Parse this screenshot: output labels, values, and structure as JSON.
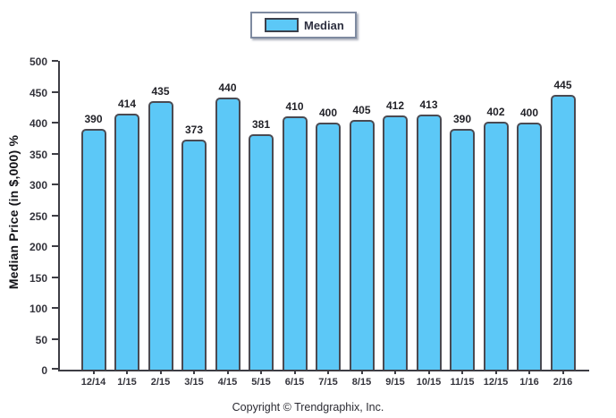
{
  "legend": {
    "label": "Median",
    "swatch_color": "#5cc8f7"
  },
  "footer": {
    "copyright": "Copyright © Trendgraphix, Inc."
  },
  "colors": {
    "bar_fill": "#5cc8f7",
    "bar_border": "#4a4a52",
    "axis": "#3d3d44"
  },
  "chart_data": {
    "type": "bar",
    "title": "",
    "xlabel": "",
    "ylabel": "Median Price (in $,000) %",
    "categories": [
      "12/14",
      "1/15",
      "2/15",
      "3/15",
      "4/15",
      "5/15",
      "6/15",
      "7/15",
      "8/15",
      "9/15",
      "10/15",
      "11/15",
      "12/15",
      "1/16",
      "2/16"
    ],
    "series": [
      {
        "name": "Median",
        "values": [
          390,
          414,
          435,
          373,
          440,
          381,
          410,
          400,
          405,
          412,
          413,
          390,
          402,
          400,
          445
        ]
      }
    ],
    "ylim": [
      0,
      500
    ],
    "yticks": [
      0,
      50,
      100,
      150,
      200,
      250,
      300,
      350,
      400,
      450,
      500
    ],
    "grid": false,
    "legend_position": "top-center",
    "value_labels": true
  }
}
